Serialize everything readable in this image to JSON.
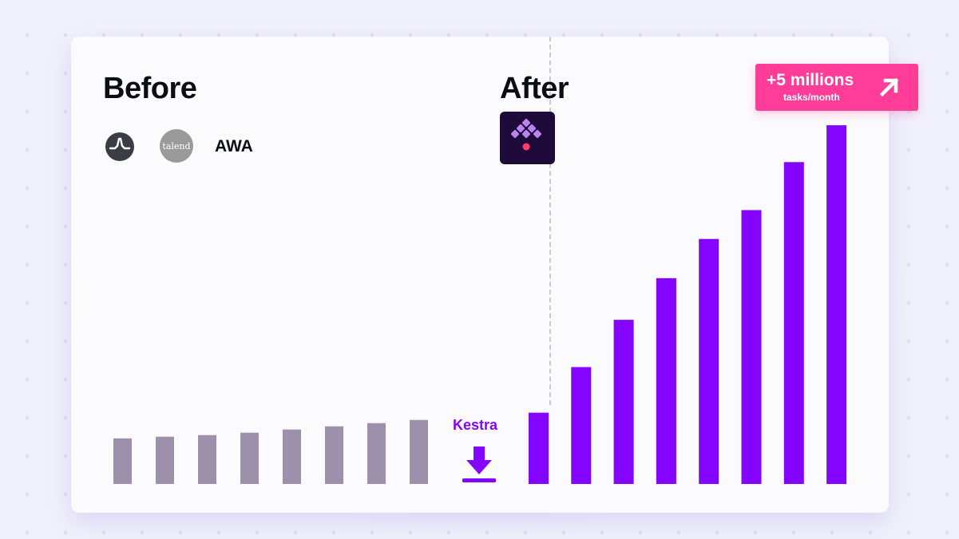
{
  "before": {
    "title": "Before",
    "tools": [
      {
        "name": "circle-pulse-logo"
      },
      {
        "label": "talend"
      },
      {
        "label": "AWA"
      }
    ]
  },
  "after": {
    "title": "After",
    "logo": "kestra-logo"
  },
  "badge": {
    "main": "+5 millions",
    "sub": "tasks/month",
    "icon": "arrow-up-right-icon"
  },
  "kestra_label": "Kestra",
  "colors": {
    "before_bars": "#9d90aa",
    "after_bars": "#8405ff",
    "badge": "#ff3d98",
    "accent": "#8405ff"
  },
  "chart_data": {
    "type": "bar",
    "series": [
      {
        "values": [
          57,
          59,
          61,
          64,
          68,
          72,
          76,
          80
        ]
      },
      {
        "values": [
          89,
          146,
          205,
          257,
          306,
          342,
          402,
          448
        ]
      }
    ],
    "ylim": [
      0,
      460
    ]
  }
}
